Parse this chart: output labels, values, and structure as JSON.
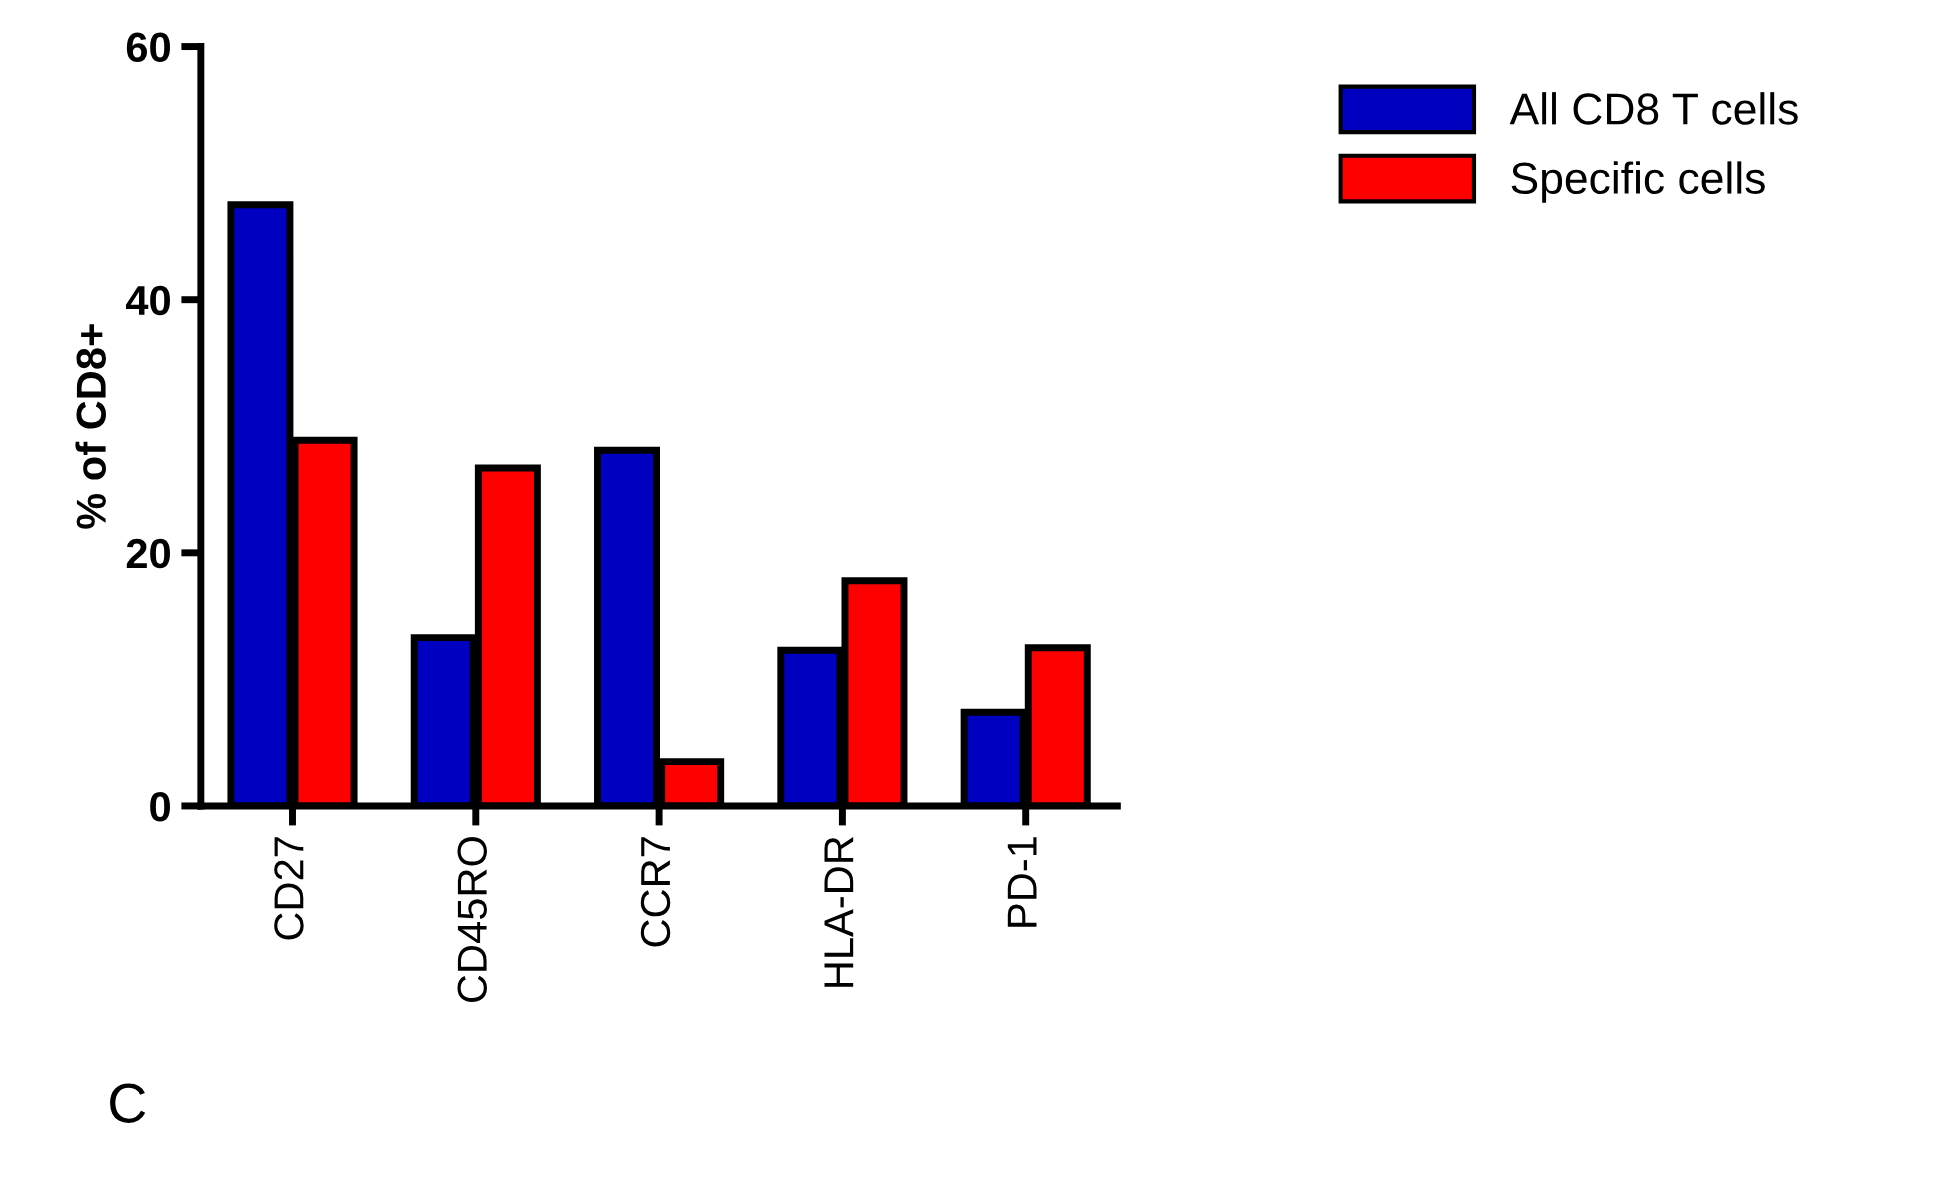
{
  "chart_data": {
    "type": "bar",
    "ylabel": "% of CD8+",
    "categories": [
      "CD27",
      "CD45RO",
      "CCR7",
      "HLA-DR",
      "PD-1"
    ],
    "series": [
      {
        "name": "All CD8 T cells",
        "color": "#0000c0",
        "values": [
          47.5,
          13.3,
          28.1,
          12.3,
          7.4
        ]
      },
      {
        "name": "Specific cells",
        "color": "#ff0000",
        "values": [
          28.9,
          26.7,
          3.5,
          17.8,
          12.5
        ]
      }
    ],
    "ylim": [
      0,
      60
    ],
    "yticks": [
      0,
      20,
      40,
      60
    ],
    "grid": false,
    "legend": "top right",
    "annotations": [
      "C"
    ]
  }
}
